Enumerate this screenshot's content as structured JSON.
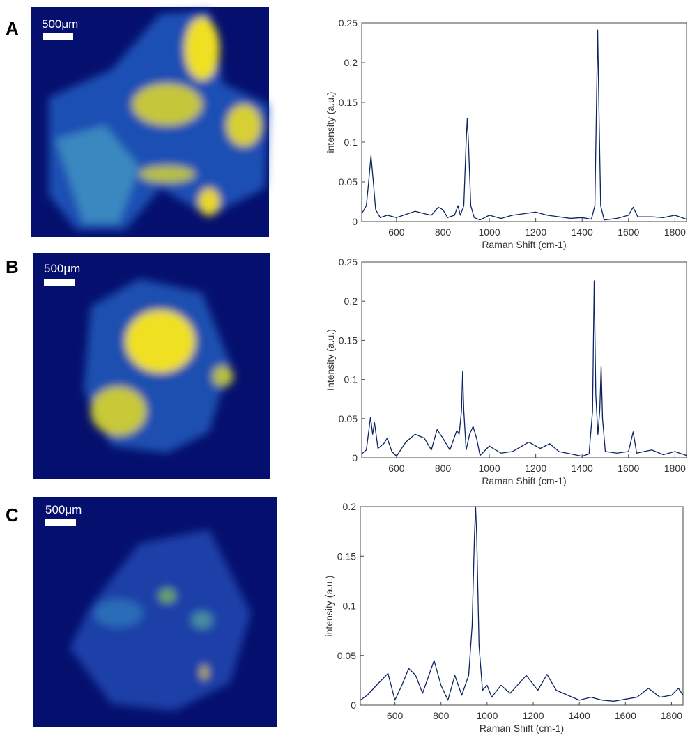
{
  "panel_labels": [
    "A",
    "B",
    "C"
  ],
  "scale_bars": [
    "500μm",
    "500μm",
    "500μm"
  ],
  "chart_data": [
    {
      "type": "line",
      "xlabel": "Raman Shift (cm-1)",
      "ylabel": "intensity (a.u.)",
      "xlim": [
        450,
        1850
      ],
      "ylim": [
        0,
        0.25
      ],
      "xticks": [
        600,
        800,
        1000,
        1200,
        1400,
        1600,
        1800
      ],
      "yticks": [
        0,
        0.05,
        0.1,
        0.15,
        0.2,
        0.25
      ],
      "series": [
        {
          "color": "#0c2461",
          "x": [
            450,
            470,
            480,
            490,
            500,
            510,
            530,
            560,
            600,
            650,
            680,
            720,
            750,
            780,
            800,
            820,
            850,
            865,
            875,
            890,
            900,
            905,
            910,
            920,
            935,
            960,
            1000,
            1050,
            1100,
            1150,
            1200,
            1250,
            1300,
            1350,
            1400,
            1440,
            1455,
            1462,
            1467,
            1472,
            1480,
            1495,
            1550,
            1600,
            1620,
            1640,
            1700,
            1750,
            1800,
            1850
          ],
          "values": [
            0.01,
            0.02,
            0.05,
            0.083,
            0.05,
            0.015,
            0.005,
            0.008,
            0.005,
            0.01,
            0.013,
            0.01,
            0.008,
            0.018,
            0.015,
            0.005,
            0.008,
            0.02,
            0.008,
            0.02,
            0.1,
            0.13,
            0.1,
            0.02,
            0.005,
            0.002,
            0.008,
            0.004,
            0.008,
            0.01,
            0.012,
            0.008,
            0.006,
            0.004,
            0.005,
            0.003,
            0.02,
            0.15,
            0.241,
            0.15,
            0.02,
            0.002,
            0.004,
            0.008,
            0.018,
            0.006,
            0.006,
            0.005,
            0.008,
            0.003
          ]
        }
      ]
    },
    {
      "type": "line",
      "xlabel": "Raman Shift (cm-1)",
      "ylabel": "Intensity (a.u.)",
      "xlim": [
        450,
        1850
      ],
      "ylim": [
        0,
        0.25
      ],
      "xticks": [
        600,
        800,
        1000,
        1200,
        1400,
        1600,
        1800
      ],
      "yticks": [
        0,
        0.05,
        0.1,
        0.15,
        0.2,
        0.25
      ],
      "series": [
        {
          "color": "#0c2461",
          "x": [
            450,
            470,
            488,
            497,
            505,
            520,
            545,
            560,
            580,
            600,
            640,
            680,
            720,
            750,
            775,
            800,
            830,
            860,
            870,
            880,
            885,
            890,
            900,
            915,
            930,
            945,
            960,
            1000,
            1050,
            1100,
            1170,
            1220,
            1260,
            1300,
            1350,
            1400,
            1430,
            1445,
            1452,
            1459,
            1468,
            1476,
            1482,
            1488,
            1500,
            1550,
            1600,
            1620,
            1635,
            1700,
            1750,
            1800,
            1850
          ],
          "values": [
            0.005,
            0.01,
            0.052,
            0.03,
            0.045,
            0.012,
            0.018,
            0.025,
            0.008,
            0.002,
            0.02,
            0.03,
            0.025,
            0.01,
            0.036,
            0.025,
            0.01,
            0.035,
            0.03,
            0.06,
            0.11,
            0.06,
            0.01,
            0.03,
            0.04,
            0.025,
            0.003,
            0.015,
            0.006,
            0.008,
            0.02,
            0.012,
            0.018,
            0.008,
            0.005,
            0.002,
            0.005,
            0.06,
            0.226,
            0.08,
            0.03,
            0.06,
            0.117,
            0.05,
            0.008,
            0.006,
            0.008,
            0.033,
            0.006,
            0.01,
            0.004,
            0.008,
            0.003
          ]
        }
      ]
    },
    {
      "type": "line",
      "xlabel": "Raman Shift (cm-1)",
      "ylabel": "intensity (a.u.)",
      "xlim": [
        450,
        1850
      ],
      "ylim": [
        0,
        0.2
      ],
      "xticks": [
        600,
        800,
        1000,
        1200,
        1400,
        1600,
        1800
      ],
      "yticks": [
        0,
        0.05,
        0.1,
        0.15,
        0.2
      ],
      "series": [
        {
          "color": "#0c2461",
          "x": [
            450,
            480,
            520,
            570,
            600,
            630,
            660,
            690,
            720,
            770,
            800,
            830,
            860,
            890,
            920,
            935,
            945,
            950,
            955,
            965,
            980,
            1000,
            1020,
            1060,
            1100,
            1170,
            1220,
            1260,
            1300,
            1350,
            1400,
            1450,
            1500,
            1550,
            1600,
            1650,
            1700,
            1750,
            1800,
            1830,
            1850
          ],
          "values": [
            0.005,
            0.01,
            0.02,
            0.032,
            0.005,
            0.02,
            0.037,
            0.03,
            0.012,
            0.045,
            0.02,
            0.005,
            0.03,
            0.01,
            0.03,
            0.08,
            0.17,
            0.2,
            0.17,
            0.06,
            0.015,
            0.02,
            0.008,
            0.02,
            0.012,
            0.03,
            0.015,
            0.031,
            0.015,
            0.01,
            0.005,
            0.008,
            0.005,
            0.004,
            0.006,
            0.008,
            0.017,
            0.008,
            0.01,
            0.017,
            0.01
          ]
        }
      ]
    }
  ]
}
